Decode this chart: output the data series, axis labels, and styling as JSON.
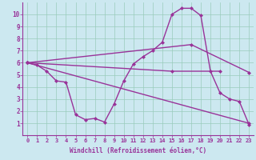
{
  "background_color": "#cce8f0",
  "line_color": "#993399",
  "marker": "D",
  "marker_size": 2,
  "line_width": 1.0,
  "xlim": [
    -0.5,
    23.5
  ],
  "ylim": [
    0,
    11
  ],
  "xticks": [
    0,
    1,
    2,
    3,
    4,
    5,
    6,
    7,
    8,
    9,
    10,
    11,
    12,
    13,
    14,
    15,
    16,
    17,
    18,
    19,
    20,
    21,
    22,
    23
  ],
  "yticks": [
    1,
    2,
    3,
    4,
    5,
    6,
    7,
    8,
    9,
    10
  ],
  "grid_color": "#99ccbb",
  "grid_linewidth": 0.5,
  "xlabel": "Windchill (Refroidissement éolien,°C)",
  "xlabel_fontsize": 5.5,
  "tick_fontsize": 5.0,
  "line1_x": [
    0,
    1,
    2,
    3,
    4,
    5,
    6,
    7,
    8,
    9,
    10,
    11,
    12,
    13,
    14,
    15,
    16,
    17,
    18,
    19,
    20,
    21,
    22,
    23
  ],
  "line1_y": [
    6.0,
    5.8,
    5.3,
    4.5,
    4.4,
    1.7,
    1.3,
    1.4,
    1.1,
    2.6,
    4.5,
    5.9,
    6.5,
    7.0,
    7.7,
    10.0,
    10.5,
    10.5,
    9.9,
    5.3,
    3.5,
    3.0,
    2.8,
    0.9
  ],
  "line2_x": [
    0,
    23
  ],
  "line2_y": [
    6.0,
    1.0
  ],
  "line3_x": [
    0,
    17,
    23
  ],
  "line3_y": [
    6.0,
    7.5,
    5.2
  ],
  "line4_x": [
    0,
    15,
    20
  ],
  "line4_y": [
    6.0,
    5.3,
    5.3
  ]
}
